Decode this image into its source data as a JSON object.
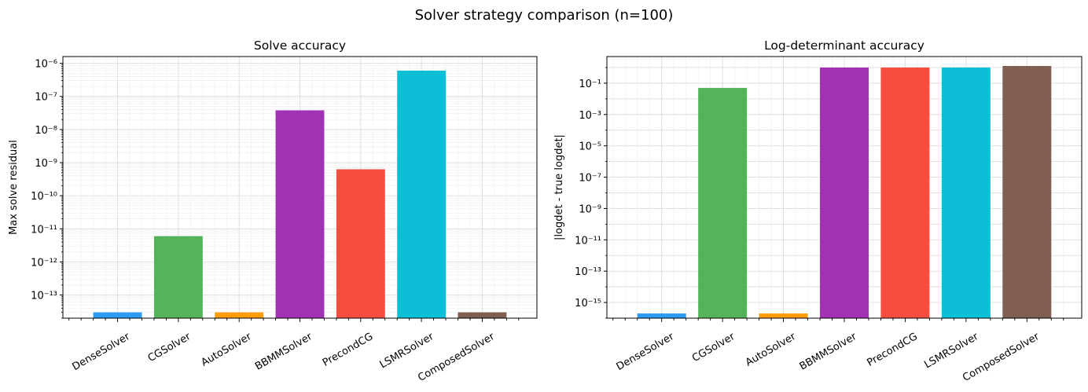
{
  "figure": {
    "title": "Solver strategy comparison (n=100)"
  },
  "chart_data": [
    {
      "type": "bar",
      "title": "Solve accuracy",
      "xlabel": "",
      "ylabel": "Max solve residual",
      "yscale": "log",
      "ylim": [
        2e-14,
        1.6e-06
      ],
      "grid": true,
      "categories": [
        "DenseSolver",
        "CGSolver",
        "AutoSolver",
        "BBMMSolver",
        "PrecondCG",
        "LSMRSolver",
        "ComposedSolver"
      ],
      "values": [
        3e-14,
        6e-12,
        3e-14,
        3.8e-08,
        6.3e-10,
        6e-07,
        3e-14
      ],
      "colors": [
        "#2196F3",
        "#4CAF50",
        "#FF9800",
        "#9C27B0",
        "#F44336",
        "#00BCD4",
        "#795548"
      ],
      "ytick_exponents": [
        -13,
        -12,
        -11,
        -10,
        -9,
        -8,
        -7,
        -6
      ]
    },
    {
      "type": "bar",
      "title": "Log-determinant accuracy",
      "xlabel": "",
      "ylabel": "|logdet - true logdet|",
      "yscale": "log",
      "ylim": [
        1e-16,
        5.0
      ],
      "grid": true,
      "categories": [
        "DenseSolver",
        "CGSolver",
        "AutoSolver",
        "BBMMSolver",
        "PrecondCG",
        "LSMRSolver",
        "ComposedSolver"
      ],
      "values": [
        2e-16,
        0.05,
        2e-16,
        1.0,
        1.0,
        1.0,
        1.25
      ],
      "colors": [
        "#2196F3",
        "#4CAF50",
        "#FF9800",
        "#9C27B0",
        "#F44336",
        "#00BCD4",
        "#795548"
      ],
      "ytick_exponents": [
        -15,
        -13,
        -11,
        -9,
        -7,
        -5,
        -3,
        -1
      ]
    }
  ]
}
